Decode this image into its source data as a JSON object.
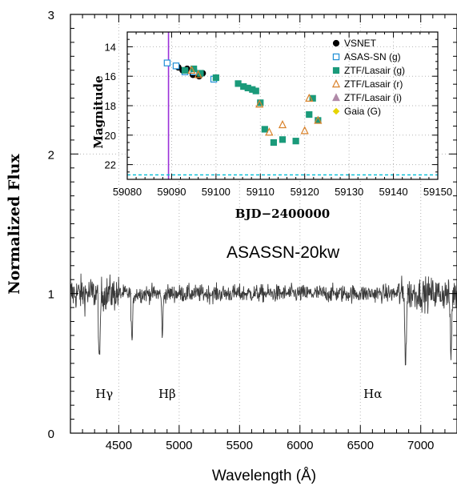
{
  "chart_data": [
    {
      "type": "line",
      "xlabel": "Wavelength (Å)",
      "ylabel": "Normalized Flux",
      "xlim": [
        4100,
        7300
      ],
      "ylim": [
        0,
        3
      ],
      "xticks": [
        "4500",
        "5000",
        "5500",
        "6000",
        "6500",
        "7000"
      ],
      "xtick_values": [
        4500,
        5000,
        5500,
        6000,
        6500,
        7000
      ],
      "yticks": [
        "0",
        "1",
        "2",
        "3"
      ],
      "ytick_values": [
        0,
        1,
        2,
        3
      ],
      "grid": true,
      "annotation": "ASASSN-20kw",
      "line_labels": [
        {
          "text": "Hγ",
          "x": 4340
        },
        {
          "text": "Hβ",
          "x": 4861
        },
        {
          "text": "Hα",
          "x": 6563
        }
      ],
      "series": [
        {
          "color": "#3a3a3a",
          "baseline": 1.0,
          "features": [
            {
              "x": 4340,
              "depth": 0.55
            },
            {
              "x": 4610,
              "depth": 0.35
            },
            {
              "x": 4861,
              "depth": 0.28
            },
            {
              "x": 6875,
              "depth": 0.48
            },
            {
              "x": 7250,
              "depth": 0.45
            }
          ]
        }
      ]
    },
    {
      "type": "scatter",
      "xlabel": "BJD−2400000",
      "ylabel": "Magnitude",
      "xlim": [
        59080,
        59150
      ],
      "ylim": [
        23,
        13
      ],
      "xticks": [
        "59080",
        "59090",
        "59100",
        "59110",
        "59120",
        "59130",
        "59140",
        "59150"
      ],
      "xtick_values": [
        59080,
        59090,
        59100,
        59110,
        59120,
        59130,
        59140,
        59150
      ],
      "yticks": [
        "14",
        "16",
        "18",
        "20",
        "22"
      ],
      "ytick_values": [
        14,
        16,
        18,
        20,
        22
      ],
      "grid": true,
      "legend_position": "top-right",
      "vertical_line": {
        "x": 59089.3,
        "color": "#9b30d9"
      },
      "horizontal_line": {
        "y": 22.7,
        "color": "#00bcd4"
      },
      "series": [
        {
          "name": "VSNET",
          "marker": "circle-filled",
          "color": "#000000",
          "x": [
            59091.5,
            59092.5,
            59093.5,
            59094.8,
            59096.2,
            59097.0
          ],
          "y": [
            15.4,
            15.6,
            15.5,
            15.9,
            16.0,
            15.8
          ]
        },
        {
          "name": "ASAS-SN (g)",
          "marker": "square-open",
          "color": "#1f8fd6",
          "x": [
            59089.0,
            59091.0,
            59093.0,
            59095.0,
            59099.5
          ],
          "y": [
            15.1,
            15.3,
            15.7,
            15.7,
            16.2
          ]
        },
        {
          "name": "ZTF/Lasair (g)",
          "marker": "square-filled",
          "color": "#1a9a7a",
          "x": [
            59093.0,
            59095.0,
            59096.5,
            59100.0,
            59105.0,
            59106.2,
            59107.2,
            59108.2,
            59109.0,
            59110.0,
            59111.0,
            59113.0,
            59115.0,
            59118.0,
            59121.0,
            59121.8,
            59123.0
          ],
          "y": [
            15.6,
            15.5,
            15.8,
            16.1,
            16.5,
            16.7,
            16.8,
            16.9,
            17.0,
            17.8,
            19.6,
            20.5,
            20.3,
            20.4,
            18.6,
            17.5,
            19.0
          ]
        },
        {
          "name": "ZTF/Lasair (r)",
          "marker": "triangle-open",
          "color": "#d9822b",
          "x": [
            59094.5,
            59096.0,
            59109.8,
            59112.0,
            59115.0,
            59120.0,
            59121.0,
            59123.0
          ],
          "y": [
            15.6,
            15.9,
            17.9,
            19.8,
            19.3,
            19.7,
            17.5,
            19.0
          ]
        },
        {
          "name": "ZTF/Lasair (i)",
          "marker": "triangle-filled",
          "color": "#b08aa8",
          "x": [],
          "y": []
        },
        {
          "name": "Gaia (G)",
          "marker": "diamond-filled",
          "color": "#e6d400",
          "x": [],
          "y": []
        }
      ]
    }
  ]
}
